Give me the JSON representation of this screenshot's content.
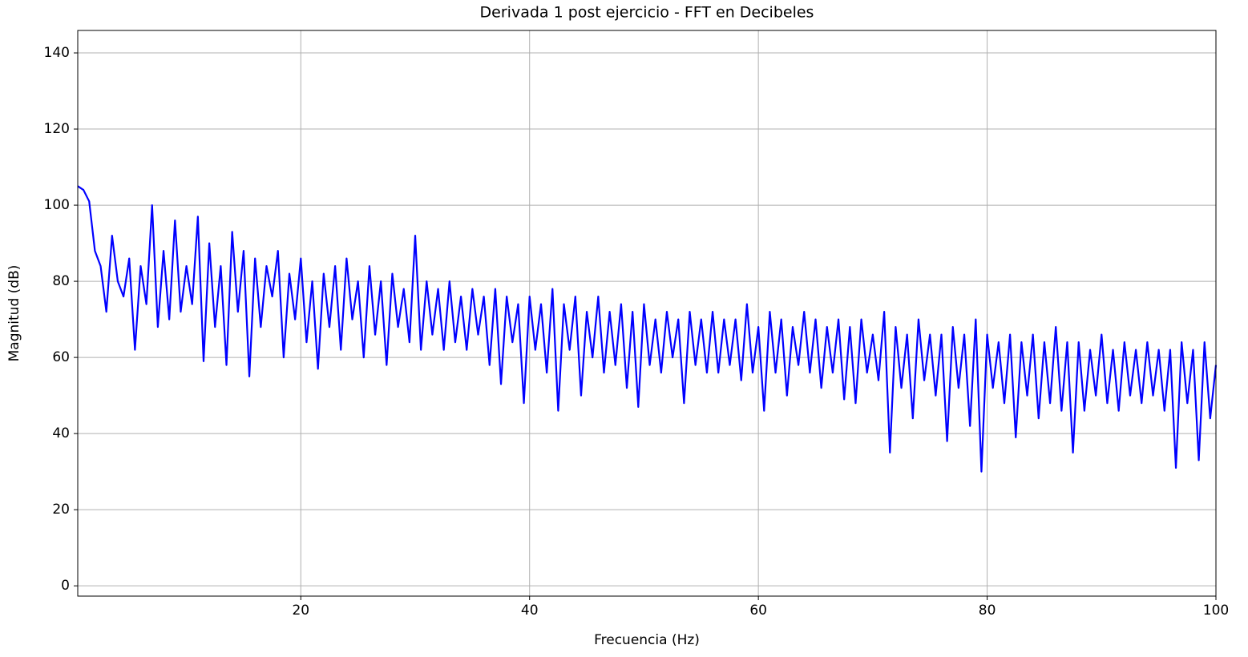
{
  "chart_data": {
    "type": "line",
    "title": "Derivada 1 post ejercicio - FFT en Decibeles",
    "xlabel": "Frecuencia (Hz)",
    "ylabel": "Magnitud (dB)",
    "color": "#0000ff",
    "grid": true,
    "xlim": [
      0.5,
      100
    ],
    "ylim": [
      -2.7,
      145.9
    ],
    "xticks": [
      20,
      40,
      60,
      80,
      100
    ],
    "yticks": [
      0,
      20,
      40,
      60,
      80,
      100,
      120,
      140
    ],
    "x": [
      0.5,
      1,
      1.5,
      2,
      2.5,
      3,
      3.5,
      4,
      4.5,
      5,
      5.5,
      6,
      6.5,
      7,
      7.5,
      8,
      8.5,
      9,
      9.5,
      10,
      10.5,
      11,
      11.5,
      12,
      12.5,
      13,
      13.5,
      14,
      14.5,
      15,
      15.5,
      16,
      16.5,
      17,
      17.5,
      18,
      18.5,
      19,
      19.5,
      20,
      20.5,
      21,
      21.5,
      22,
      22.5,
      23,
      23.5,
      24,
      24.5,
      25,
      25.5,
      26,
      26.5,
      27,
      27.5,
      28,
      28.5,
      29,
      29.5,
      30,
      30.5,
      31,
      31.5,
      32,
      32.5,
      33,
      33.5,
      34,
      34.5,
      35,
      35.5,
      36,
      36.5,
      37,
      37.5,
      38,
      38.5,
      39,
      39.5,
      40,
      40.5,
      41,
      41.5,
      42,
      42.5,
      43,
      43.5,
      44,
      44.5,
      45,
      45.5,
      46,
      46.5,
      47,
      47.5,
      48,
      48.5,
      49,
      49.5,
      50,
      50.5,
      51,
      51.5,
      52,
      52.5,
      53,
      53.5,
      54,
      54.5,
      55,
      55.5,
      56,
      56.5,
      57,
      57.5,
      58,
      58.5,
      59,
      59.5,
      60,
      60.5,
      61,
      61.5,
      62,
      62.5,
      63,
      63.5,
      64,
      64.5,
      65,
      65.5,
      66,
      66.5,
      67,
      67.5,
      68,
      68.5,
      69,
      69.5,
      70,
      70.5,
      71,
      71.5,
      72,
      72.5,
      73,
      73.5,
      74,
      74.5,
      75,
      75.5,
      76,
      76.5,
      77,
      77.5,
      78,
      78.5,
      79,
      79.5,
      80,
      80.5,
      81,
      81.5,
      82,
      82.5,
      83,
      83.5,
      84,
      84.5,
      85,
      85.5,
      86,
      86.5,
      87,
      87.5,
      88,
      88.5,
      89,
      89.5,
      90,
      90.5,
      91,
      91.5,
      92,
      92.5,
      93,
      93.5,
      94,
      94.5,
      95,
      95.5,
      96,
      96.5,
      97,
      97.5,
      98,
      98.5,
      99,
      99.5,
      100
    ],
    "values": [
      105,
      104,
      101,
      88,
      84,
      72,
      92,
      80,
      76,
      86,
      62,
      84,
      74,
      100,
      68,
      88,
      70,
      96,
      72,
      84,
      74,
      97,
      59,
      90,
      68,
      84,
      58,
      93,
      72,
      88,
      55,
      86,
      68,
      84,
      76,
      88,
      60,
      82,
      70,
      86,
      64,
      80,
      57,
      82,
      68,
      84,
      62,
      86,
      70,
      80,
      60,
      84,
      66,
      80,
      58,
      82,
      68,
      78,
      64,
      92,
      62,
      80,
      66,
      78,
      62,
      80,
      64,
      76,
      62,
      78,
      66,
      76,
      58,
      78,
      53,
      76,
      64,
      74,
      48,
      76,
      62,
      74,
      56,
      78,
      46,
      74,
      62,
      76,
      50,
      72,
      60,
      76,
      56,
      72,
      58,
      74,
      52,
      72,
      47,
      74,
      58,
      70,
      56,
      72,
      60,
      70,
      48,
      72,
      58,
      70,
      56,
      72,
      56,
      70,
      58,
      70,
      54,
      74,
      56,
      68,
      46,
      72,
      56,
      70,
      50,
      68,
      58,
      72,
      56,
      70,
      52,
      68,
      56,
      70,
      49,
      68,
      48,
      70,
      56,
      66,
      54,
      72,
      35,
      68,
      52,
      66,
      44,
      70,
      54,
      66,
      50,
      66,
      38,
      68,
      52,
      66,
      42,
      70,
      30,
      66,
      52,
      64,
      48,
      66,
      39,
      64,
      50,
      66,
      44,
      64,
      48,
      68,
      46,
      64,
      35,
      64,
      46,
      62,
      50,
      66,
      48,
      62,
      46,
      64,
      50,
      62,
      48,
      64,
      50,
      62,
      46,
      62,
      31,
      64,
      48,
      62,
      33,
      64,
      44,
      58
    ]
  }
}
